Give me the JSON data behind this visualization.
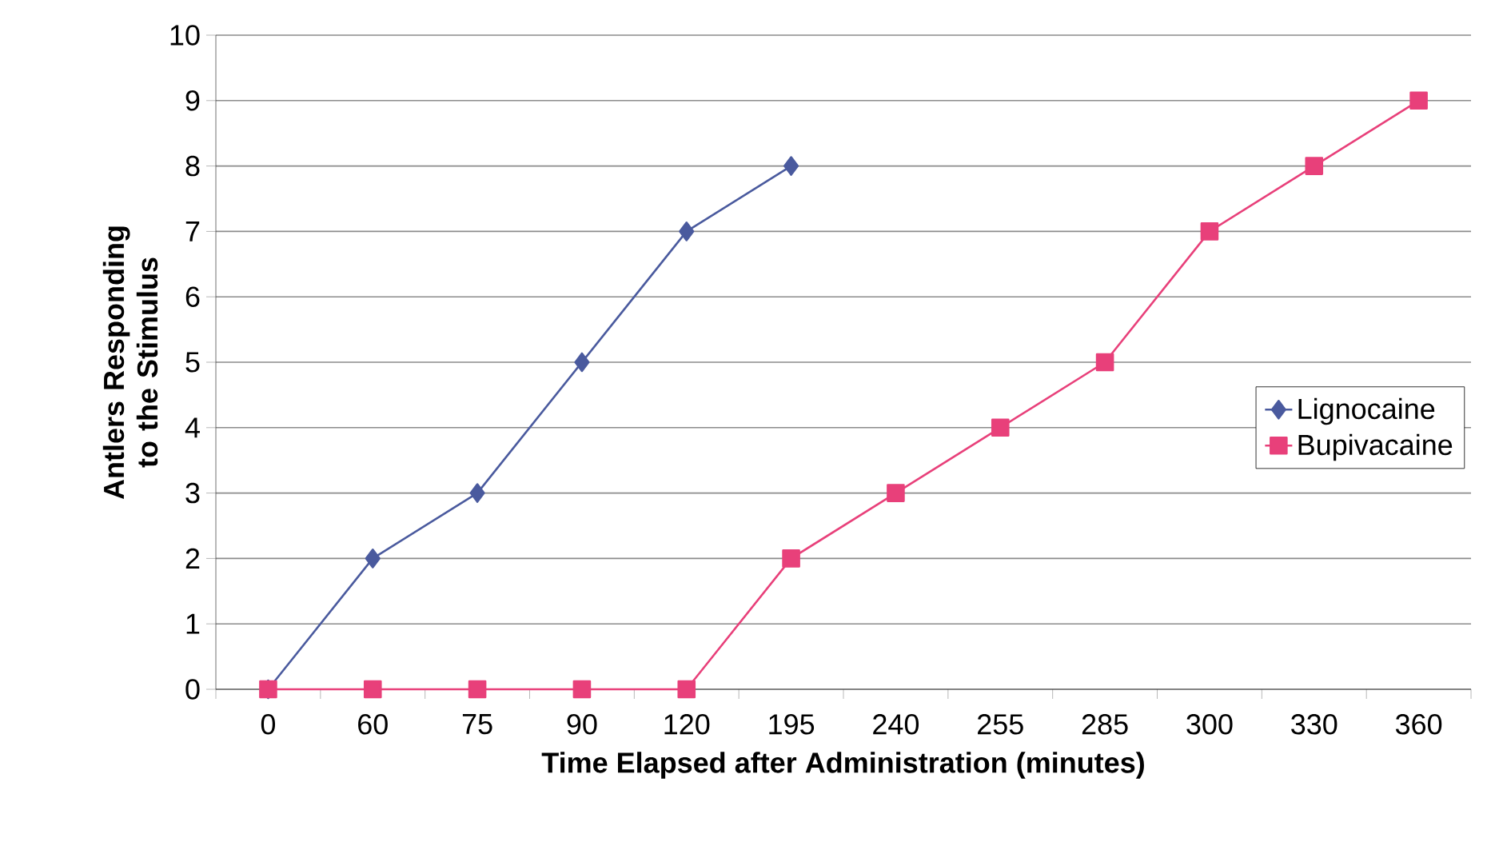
{
  "chart_data": {
    "type": "line",
    "xlabel": "Time Elapsed after Administration (minutes)",
    "ylabel": "Antlers Responding to the Stimulus",
    "categories": [
      "0",
      "60",
      "75",
      "90",
      "120",
      "195",
      "240",
      "255",
      "285",
      "300",
      "330",
      "360"
    ],
    "series": [
      {
        "name": "Lignocaine",
        "color": "#4a5a9e",
        "marker": "diamond",
        "values": [
          0,
          2,
          3,
          5,
          7,
          8,
          null,
          null,
          null,
          null,
          null,
          null
        ]
      },
      {
        "name": "Bupivacaine",
        "color": "#e8407a",
        "marker": "square",
        "values": [
          0,
          0,
          0,
          0,
          0,
          2,
          3,
          4,
          5,
          7,
          8,
          9
        ]
      }
    ],
    "ylim": [
      0,
      10
    ],
    "yticks": [
      0,
      1,
      2,
      3,
      4,
      5,
      6,
      7,
      8,
      9,
      10
    ],
    "grid": "y",
    "legend": "right"
  }
}
